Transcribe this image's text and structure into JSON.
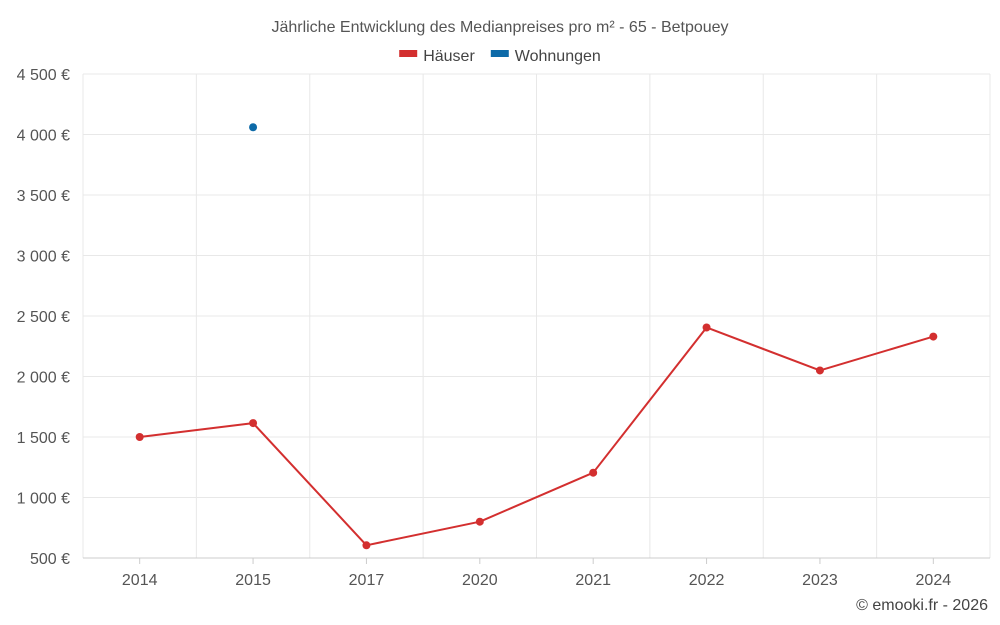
{
  "chart_data": {
    "type": "line",
    "title": "Jährliche Entwicklung des Medianpreises pro m² - 65 - Betpouey",
    "categories": [
      "2014",
      "2015",
      "2017",
      "2020",
      "2021",
      "2022",
      "2023",
      "2024"
    ],
    "series": [
      {
        "name": "Häuser",
        "color": "#d32f2f",
        "values": [
          1500,
          1615,
          605,
          800,
          1205,
          2405,
          2050,
          2330
        ]
      },
      {
        "name": "Wohnungen",
        "color": "#0d6aa8",
        "values": [
          null,
          4060,
          null,
          null,
          null,
          null,
          null,
          null
        ]
      }
    ],
    "ylim": [
      500,
      4500
    ],
    "yticks": [
      500,
      1000,
      1500,
      2000,
      2500,
      3000,
      3500,
      4000,
      4500
    ],
    "ytick_labels": [
      "500 €",
      "1 000 €",
      "1 500 €",
      "2 000 €",
      "2 500 €",
      "3 000 €",
      "3 500 €",
      "4 000 €",
      "4 500 €"
    ],
    "xlabel": "",
    "ylabel": "",
    "legend_position": "top-center",
    "grid": true
  },
  "credit": "© emooki.fr - 2026"
}
